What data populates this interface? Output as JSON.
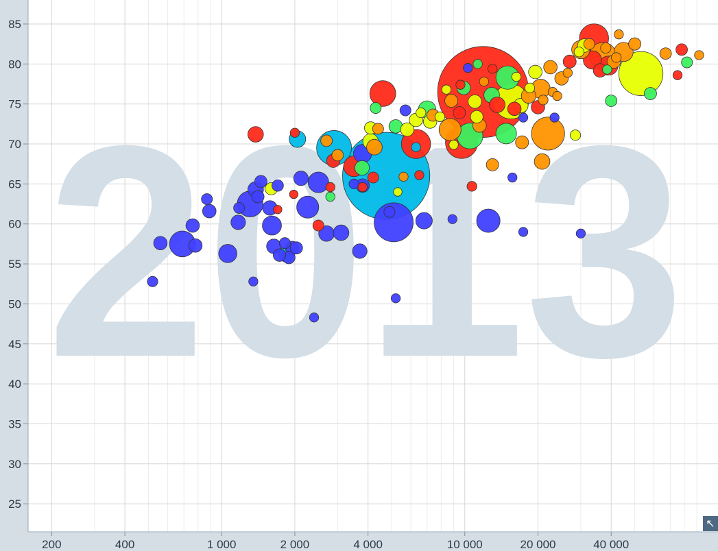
{
  "expand_icon": "arrow-up-left-icon",
  "chart_data": {
    "type": "scatter",
    "year": "2013",
    "x_scale": "log",
    "xlim": [
      160,
      110000
    ],
    "ylim": [
      21.5,
      88
    ],
    "x_ticks": [
      {
        "value": 200,
        "label": "200"
      },
      {
        "value": 400,
        "label": "400"
      },
      {
        "value": 1000,
        "label": "1 000"
      },
      {
        "value": 2000,
        "label": "2 000"
      },
      {
        "value": 4000,
        "label": "4 000"
      },
      {
        "value": 10000,
        "label": "10 000"
      },
      {
        "value": 20000,
        "label": "20 000"
      },
      {
        "value": 40000,
        "label": "40 000"
      }
    ],
    "x_minor_grid": [
      300,
      500,
      600,
      700,
      800,
      900,
      3000,
      5000,
      6000,
      7000,
      8000,
      9000,
      30000,
      50000,
      60000,
      70000,
      80000,
      90000
    ],
    "y_ticks": [
      25,
      30,
      35,
      40,
      45,
      50,
      55,
      60,
      65,
      70,
      75,
      80,
      85
    ],
    "grid": true,
    "colors": {
      "blue": "#4040ff",
      "cyan": "#00bbe8",
      "green": "#3cf060",
      "yellow": "#e7ff00",
      "orange": "#ff9300",
      "red": "#ff2a1a"
    },
    "points": [
      {
        "x": 11900,
        "y": 76.5,
        "size": 1360,
        "color": "red"
      },
      {
        "x": 4750,
        "y": 66.0,
        "size": 1250,
        "color": "cyan"
      },
      {
        "x": 53000,
        "y": 78.8,
        "size": 320,
        "color": "yellow"
      },
      {
        "x": 5100,
        "y": 60.2,
        "size": 250,
        "color": "blue"
      },
      {
        "x": 2900,
        "y": 69.5,
        "size": 200,
        "color": "cyan"
      },
      {
        "x": 22000,
        "y": 71.3,
        "size": 180,
        "color": "orange"
      },
      {
        "x": 34000,
        "y": 83.2,
        "size": 140,
        "color": "red"
      },
      {
        "x": 15500,
        "y": 75.3,
        "size": 200,
        "color": "yellow"
      },
      {
        "x": 9700,
        "y": 70.2,
        "size": 170,
        "color": "red"
      },
      {
        "x": 6300,
        "y": 70.0,
        "size": 140,
        "color": "red"
      },
      {
        "x": 4600,
        "y": 76.3,
        "size": 110,
        "color": "red"
      },
      {
        "x": 37000,
        "y": 81.0,
        "size": 120,
        "color": "orange"
      },
      {
        "x": 12500,
        "y": 60.4,
        "size": 90,
        "color": "blue"
      },
      {
        "x": 10500,
        "y": 71.0,
        "size": 110,
        "color": "green"
      },
      {
        "x": 15000,
        "y": 78.3,
        "size": 90,
        "color": "green"
      },
      {
        "x": 14800,
        "y": 71.3,
        "size": 70,
        "color": "green"
      },
      {
        "x": 8700,
        "y": 71.8,
        "size": 80,
        "color": "orange"
      },
      {
        "x": 2500,
        "y": 65.2,
        "size": 70,
        "color": "blue"
      },
      {
        "x": 2260,
        "y": 62.1,
        "size": 80,
        "color": "blue"
      },
      {
        "x": 3500,
        "y": 67.2,
        "size": 70,
        "color": "red"
      },
      {
        "x": 1310,
        "y": 62.5,
        "size": 110,
        "color": "blue"
      },
      {
        "x": 690,
        "y": 57.5,
        "size": 110,
        "color": "blue"
      },
      {
        "x": 1610,
        "y": 59.8,
        "size": 60,
        "color": "blue"
      },
      {
        "x": 1060,
        "y": 56.3,
        "size": 55,
        "color": "blue"
      },
      {
        "x": 3800,
        "y": 68.8,
        "size": 55,
        "color": "blue"
      },
      {
        "x": 6800,
        "y": 60.4,
        "size": 45,
        "color": "blue"
      },
      {
        "x": 7000,
        "y": 74.3,
        "size": 50,
        "color": "green"
      },
      {
        "x": 20500,
        "y": 76.9,
        "size": 60,
        "color": "orange"
      },
      {
        "x": 39000,
        "y": 79.8,
        "size": 60,
        "color": "red"
      },
      {
        "x": 33500,
        "y": 80.5,
        "size": 55,
        "color": "red"
      },
      {
        "x": 45000,
        "y": 81.5,
        "size": 60,
        "color": "orange"
      },
      {
        "x": 30000,
        "y": 81.8,
        "size": 55,
        "color": "orange"
      },
      {
        "x": 20800,
        "y": 67.8,
        "size": 40,
        "color": "orange"
      },
      {
        "x": 2050,
        "y": 70.6,
        "size": 45,
        "color": "cyan"
      },
      {
        "x": 1380,
        "y": 71.2,
        "size": 40,
        "color": "red"
      },
      {
        "x": 2700,
        "y": 58.8,
        "size": 40,
        "color": "blue"
      },
      {
        "x": 3100,
        "y": 58.9,
        "size": 40,
        "color": "blue"
      },
      {
        "x": 3700,
        "y": 56.6,
        "size": 35,
        "color": "blue"
      },
      {
        "x": 1640,
        "y": 57.2,
        "size": 35,
        "color": "blue"
      },
      {
        "x": 1580,
        "y": 62.0,
        "size": 35,
        "color": "blue"
      },
      {
        "x": 1380,
        "y": 64.3,
        "size": 40,
        "color": "blue"
      },
      {
        "x": 1170,
        "y": 60.2,
        "size": 35,
        "color": "blue"
      },
      {
        "x": 1850,
        "y": 56.2,
        "size": 40,
        "color": "cyan"
      },
      {
        "x": 1950,
        "y": 57.0,
        "size": 30,
        "color": "blue"
      },
      {
        "x": 2120,
        "y": 65.7,
        "size": 35,
        "color": "blue"
      },
      {
        "x": 760,
        "y": 59.8,
        "size": 30,
        "color": "blue"
      },
      {
        "x": 780,
        "y": 57.3,
        "size": 30,
        "color": "blue"
      },
      {
        "x": 560,
        "y": 57.6,
        "size": 30,
        "color": "blue"
      },
      {
        "x": 890,
        "y": 61.6,
        "size": 30,
        "color": "blue"
      },
      {
        "x": 4100,
        "y": 70.3,
        "size": 40,
        "color": "yellow"
      },
      {
        "x": 4250,
        "y": 69.6,
        "size": 40,
        "color": "orange"
      },
      {
        "x": 3780,
        "y": 67.0,
        "size": 35,
        "color": "green"
      },
      {
        "x": 3800,
        "y": 64.8,
        "size": 30,
        "color": "blue"
      },
      {
        "x": 2880,
        "y": 67.9,
        "size": 30,
        "color": "red"
      },
      {
        "x": 5200,
        "y": 72.2,
        "size": 30,
        "color": "green"
      },
      {
        "x": 5800,
        "y": 71.8,
        "size": 30,
        "color": "yellow"
      },
      {
        "x": 7200,
        "y": 72.8,
        "size": 30,
        "color": "yellow"
      },
      {
        "x": 11500,
        "y": 72.3,
        "size": 30,
        "color": "orange"
      },
      {
        "x": 17000,
        "y": 74.8,
        "size": 35,
        "color": "yellow"
      },
      {
        "x": 18300,
        "y": 76.0,
        "size": 35,
        "color": "orange"
      },
      {
        "x": 19500,
        "y": 79.0,
        "size": 30,
        "color": "yellow"
      },
      {
        "x": 22500,
        "y": 79.6,
        "size": 30,
        "color": "orange"
      },
      {
        "x": 16000,
        "y": 74.4,
        "size": 30,
        "color": "red"
      },
      {
        "x": 12900,
        "y": 76.1,
        "size": 40,
        "color": "green"
      },
      {
        "x": 11000,
        "y": 75.3,
        "size": 30,
        "color": "yellow"
      },
      {
        "x": 13600,
        "y": 74.9,
        "size": 40,
        "color": "red"
      },
      {
        "x": 9900,
        "y": 77.0,
        "size": 30,
        "color": "green"
      },
      {
        "x": 8800,
        "y": 75.4,
        "size": 28,
        "color": "orange"
      },
      {
        "x": 25000,
        "y": 78.2,
        "size": 30,
        "color": "orange"
      },
      {
        "x": 31000,
        "y": 82.3,
        "size": 30,
        "color": "yellow"
      },
      {
        "x": 27000,
        "y": 80.3,
        "size": 28,
        "color": "red"
      },
      {
        "x": 41000,
        "y": 80.3,
        "size": 30,
        "color": "orange"
      },
      {
        "x": 50000,
        "y": 82.5,
        "size": 25,
        "color": "orange"
      },
      {
        "x": 58000,
        "y": 76.3,
        "size": 25,
        "color": "green"
      },
      {
        "x": 67000,
        "y": 81.3,
        "size": 22,
        "color": "orange"
      },
      {
        "x": 78000,
        "y": 81.8,
        "size": 22,
        "color": "red"
      },
      {
        "x": 82000,
        "y": 80.2,
        "size": 20,
        "color": "green"
      },
      {
        "x": 92000,
        "y": 81.1,
        "size": 14,
        "color": "orange"
      },
      {
        "x": 75000,
        "y": 78.6,
        "size": 14,
        "color": "red"
      },
      {
        "x": 43000,
        "y": 83.7,
        "size": 14,
        "color": "orange"
      },
      {
        "x": 40000,
        "y": 75.4,
        "size": 22,
        "color": "green"
      },
      {
        "x": 36000,
        "y": 79.2,
        "size": 30,
        "color": "red"
      },
      {
        "x": 28500,
        "y": 71.1,
        "size": 18,
        "color": "yellow"
      },
      {
        "x": 20000,
        "y": 74.6,
        "size": 30,
        "color": "red"
      },
      {
        "x": 17200,
        "y": 70.2,
        "size": 28,
        "color": "orange"
      },
      {
        "x": 13000,
        "y": 67.4,
        "size": 25,
        "color": "orange"
      },
      {
        "x": 11200,
        "y": 73.4,
        "size": 26,
        "color": "yellow"
      },
      {
        "x": 9500,
        "y": 73.9,
        "size": 25,
        "color": "red"
      },
      {
        "x": 7400,
        "y": 73.6,
        "size": 25,
        "color": "orange"
      },
      {
        "x": 6300,
        "y": 73.0,
        "size": 30,
        "color": "yellow"
      },
      {
        "x": 5700,
        "y": 74.2,
        "size": 20,
        "color": "blue"
      },
      {
        "x": 4300,
        "y": 74.5,
        "size": 20,
        "color": "green"
      },
      {
        "x": 4100,
        "y": 72.0,
        "size": 25,
        "color": "yellow"
      },
      {
        "x": 4400,
        "y": 71.9,
        "size": 20,
        "color": "orange"
      },
      {
        "x": 3000,
        "y": 68.6,
        "size": 22,
        "color": "orange"
      },
      {
        "x": 2700,
        "y": 70.4,
        "size": 22,
        "color": "orange"
      },
      {
        "x": 2000,
        "y": 71.4,
        "size": 14,
        "color": "red"
      },
      {
        "x": 2800,
        "y": 64.6,
        "size": 14,
        "color": "red"
      },
      {
        "x": 2800,
        "y": 63.4,
        "size": 14,
        "color": "green"
      },
      {
        "x": 1980,
        "y": 63.7,
        "size": 12,
        "color": "red"
      },
      {
        "x": 1700,
        "y": 61.8,
        "size": 12,
        "color": "red"
      },
      {
        "x": 1600,
        "y": 64.4,
        "size": 25,
        "color": "yellow"
      },
      {
        "x": 1450,
        "y": 65.3,
        "size": 25,
        "color": "blue"
      },
      {
        "x": 1700,
        "y": 64.8,
        "size": 22,
        "color": "blue"
      },
      {
        "x": 1180,
        "y": 62.0,
        "size": 20,
        "color": "blue"
      },
      {
        "x": 870,
        "y": 63.1,
        "size": 20,
        "color": "blue"
      },
      {
        "x": 1410,
        "y": 63.4,
        "size": 25,
        "color": "blue"
      },
      {
        "x": 1820,
        "y": 57.6,
        "size": 20,
        "color": "blue"
      },
      {
        "x": 1890,
        "y": 55.8,
        "size": 26,
        "color": "blue"
      },
      {
        "x": 2030,
        "y": 57.0,
        "size": 25,
        "color": "blue"
      },
      {
        "x": 1730,
        "y": 56.1,
        "size": 26,
        "color": "blue"
      },
      {
        "x": 2500,
        "y": 59.8,
        "size": 20,
        "color": "red"
      },
      {
        "x": 1350,
        "y": 52.8,
        "size": 14,
        "color": "blue"
      },
      {
        "x": 520,
        "y": 52.8,
        "size": 18,
        "color": "blue"
      },
      {
        "x": 2400,
        "y": 48.3,
        "size": 14,
        "color": "blue"
      },
      {
        "x": 5200,
        "y": 50.7,
        "size": 14,
        "color": "blue"
      },
      {
        "x": 5300,
        "y": 64.0,
        "size": 12,
        "color": "yellow"
      },
      {
        "x": 4200,
        "y": 65.8,
        "size": 20,
        "color": "red"
      },
      {
        "x": 3500,
        "y": 65.0,
        "size": 16,
        "color": "blue"
      },
      {
        "x": 3800,
        "y": 64.6,
        "size": 14,
        "color": "red"
      },
      {
        "x": 4900,
        "y": 61.5,
        "size": 20,
        "color": "blue"
      },
      {
        "x": 5600,
        "y": 65.9,
        "size": 14,
        "color": "orange"
      },
      {
        "x": 6500,
        "y": 66.1,
        "size": 14,
        "color": "red"
      },
      {
        "x": 8900,
        "y": 60.6,
        "size": 14,
        "color": "blue"
      },
      {
        "x": 10700,
        "y": 64.7,
        "size": 16,
        "color": "red"
      },
      {
        "x": 15700,
        "y": 65.8,
        "size": 14,
        "color": "blue"
      },
      {
        "x": 17400,
        "y": 59.0,
        "size": 14,
        "color": "blue"
      },
      {
        "x": 30000,
        "y": 58.8,
        "size": 14,
        "color": "blue"
      },
      {
        "x": 23400,
        "y": 73.3,
        "size": 14,
        "color": "blue"
      },
      {
        "x": 9000,
        "y": 69.9,
        "size": 14,
        "color": "yellow"
      },
      {
        "x": 6300,
        "y": 69.6,
        "size": 14,
        "color": "cyan"
      },
      {
        "x": 6600,
        "y": 73.9,
        "size": 16,
        "color": "yellow"
      },
      {
        "x": 7900,
        "y": 73.4,
        "size": 16,
        "color": "yellow"
      },
      {
        "x": 10300,
        "y": 79.5,
        "size": 14,
        "color": "blue"
      },
      {
        "x": 11300,
        "y": 80.0,
        "size": 14,
        "color": "green"
      },
      {
        "x": 13000,
        "y": 79.4,
        "size": 14,
        "color": "red"
      },
      {
        "x": 16300,
        "y": 78.4,
        "size": 14,
        "color": "yellow"
      },
      {
        "x": 18500,
        "y": 77.0,
        "size": 16,
        "color": "yellow"
      },
      {
        "x": 21000,
        "y": 75.5,
        "size": 16,
        "color": "orange"
      },
      {
        "x": 23000,
        "y": 76.5,
        "size": 14,
        "color": "orange"
      },
      {
        "x": 24000,
        "y": 76.0,
        "size": 14,
        "color": "orange"
      },
      {
        "x": 26500,
        "y": 78.9,
        "size": 14,
        "color": "orange"
      },
      {
        "x": 29500,
        "y": 81.5,
        "size": 16,
        "color": "yellow"
      },
      {
        "x": 32500,
        "y": 82.5,
        "size": 20,
        "color": "orange"
      },
      {
        "x": 38000,
        "y": 82.0,
        "size": 18,
        "color": "orange"
      },
      {
        "x": 42000,
        "y": 80.8,
        "size": 16,
        "color": "orange"
      },
      {
        "x": 38500,
        "y": 79.3,
        "size": 14,
        "color": "green"
      },
      {
        "x": 17400,
        "y": 73.3,
        "size": 14,
        "color": "blue"
      },
      {
        "x": 12000,
        "y": 77.8,
        "size": 14,
        "color": "orange"
      },
      {
        "x": 9600,
        "y": 77.4,
        "size": 14,
        "color": "red"
      },
      {
        "x": 8400,
        "y": 76.8,
        "size": 14,
        "color": "yellow"
      }
    ]
  }
}
